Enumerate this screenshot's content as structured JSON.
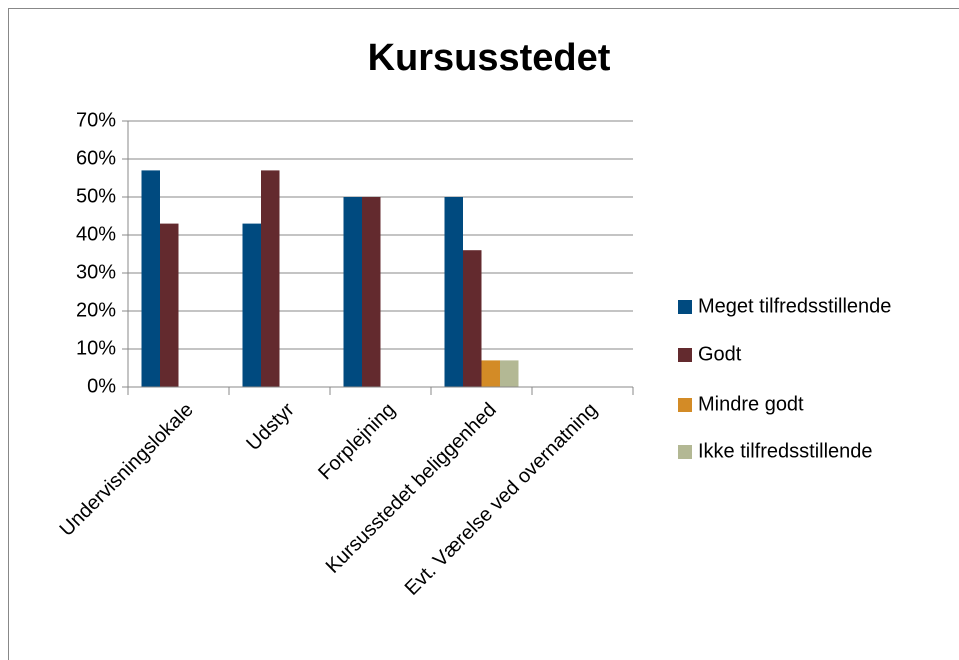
{
  "chart_data": {
    "type": "bar",
    "title": "Kursusstedet",
    "categories": [
      "Undervisningslokale",
      "Udstyr",
      "Forplejning",
      "Kursusstedet beliggenhed",
      "Evt. Værelse ved overnatning"
    ],
    "series": [
      {
        "name": "Meget tilfredsstillende",
        "color": "#004a7f",
        "values": [
          57,
          43,
          50,
          50,
          0
        ]
      },
      {
        "name": "Godt",
        "color": "#632a2e",
        "values": [
          43,
          57,
          50,
          36,
          0
        ]
      },
      {
        "name": "Mindre godt",
        "color": "#d38b26",
        "values": [
          0,
          0,
          0,
          7,
          0
        ]
      },
      {
        "name": "Ikke tilfredsstillende",
        "color": "#b3b894",
        "values": [
          0,
          0,
          0,
          7,
          0
        ]
      }
    ],
    "ylim": [
      0,
      70
    ],
    "yticks": [
      {
        "value": 0,
        "label": "0%"
      },
      {
        "value": 10,
        "label": "10%"
      },
      {
        "value": 20,
        "label": "20%"
      },
      {
        "value": 30,
        "label": "30%"
      },
      {
        "value": 40,
        "label": "40%"
      },
      {
        "value": 50,
        "label": "50%"
      },
      {
        "value": 60,
        "label": "60%"
      },
      {
        "value": 70,
        "label": "70%"
      }
    ],
    "grid": true,
    "legend": "right"
  }
}
